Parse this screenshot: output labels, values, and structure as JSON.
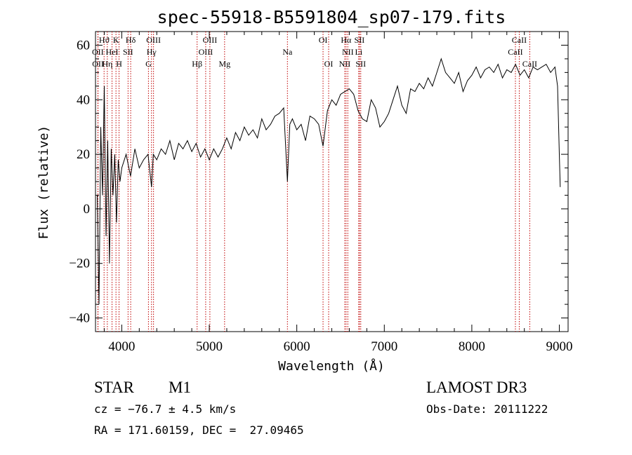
{
  "chart_data": {
    "type": "line",
    "title": "spec-55918-B5591804_sp07-179.fits",
    "xlabel": "Wavelength (Å)",
    "ylabel": "Flux (relative)",
    "xlim": [
      3700,
      9100
    ],
    "ylim": [
      -45,
      65
    ],
    "xticks": [
      4000,
      5000,
      6000,
      7000,
      8000,
      9000
    ],
    "xtick_labels": [
      "4000",
      "5000",
      "6000",
      "7000",
      "8000",
      "9000"
    ],
    "yticks": [
      -40,
      -20,
      0,
      20,
      40,
      60
    ],
    "ytick_labels": [
      "−40",
      "−20",
      "0",
      "20",
      "40",
      "60"
    ],
    "grid": false,
    "series": [
      {
        "name": "flux",
        "x": [
          3720,
          3740,
          3760,
          3780,
          3800,
          3820,
          3840,
          3860,
          3880,
          3900,
          3920,
          3940,
          3960,
          3980,
          4000,
          4050,
          4100,
          4150,
          4200,
          4250,
          4300,
          4340,
          4360,
          4400,
          4450,
          4500,
          4550,
          4600,
          4650,
          4700,
          4750,
          4800,
          4850,
          4900,
          4950,
          5000,
          5050,
          5100,
          5150,
          5200,
          5250,
          5300,
          5350,
          5400,
          5450,
          5500,
          5550,
          5600,
          5650,
          5700,
          5750,
          5800,
          5850,
          5893,
          5920,
          5950,
          6000,
          6050,
          6100,
          6150,
          6200,
          6250,
          6300,
          6350,
          6400,
          6450,
          6500,
          6550,
          6600,
          6650,
          6700,
          6750,
          6800,
          6850,
          6900,
          6950,
          7000,
          7050,
          7100,
          7150,
          7200,
          7250,
          7300,
          7350,
          7400,
          7450,
          7500,
          7550,
          7600,
          7650,
          7700,
          7750,
          7800,
          7850,
          7900,
          7950,
          8000,
          8050,
          8100,
          8150,
          8200,
          8250,
          8300,
          8350,
          8400,
          8450,
          8500,
          8550,
          8600,
          8650,
          8700,
          8750,
          8800,
          8850,
          8900,
          8950,
          8980,
          9000,
          9010
        ],
        "y": [
          5,
          -35,
          30,
          5,
          45,
          -10,
          25,
          -20,
          22,
          5,
          20,
          -5,
          18,
          10,
          15,
          20,
          12,
          22,
          15,
          18,
          20,
          8,
          20,
          18,
          22,
          20,
          25,
          18,
          24,
          22,
          25,
          21,
          24,
          19,
          22,
          18,
          22,
          19,
          22,
          26,
          22,
          28,
          25,
          30,
          27,
          29,
          26,
          33,
          29,
          31,
          34,
          35,
          37,
          10,
          31,
          33,
          29,
          31,
          25,
          34,
          33,
          31,
          23,
          36,
          40,
          38,
          42,
          43,
          44,
          42,
          36,
          33,
          32,
          40,
          37,
          30,
          32,
          35,
          40,
          45,
          38,
          35,
          44,
          43,
          46,
          44,
          48,
          45,
          50,
          55,
          50,
          48,
          46,
          50,
          43,
          47,
          49,
          52,
          48,
          51,
          52,
          50,
          53,
          48,
          51,
          50,
          53,
          49,
          51,
          48,
          52,
          51,
          52,
          53,
          50,
          52,
          45,
          20,
          8
        ]
      }
    ],
    "line_markers": [
      {
        "label": "Hϑ",
        "wavelength": 3798
      },
      {
        "label": "OII",
        "wavelength": 3727
      },
      {
        "label": "OII",
        "wavelength": 3729
      },
      {
        "label": "Hη",
        "wavelength": 3835
      },
      {
        "label": "HeI",
        "wavelength": 3889
      },
      {
        "label": "K",
        "wavelength": 3934
      },
      {
        "label": "H",
        "wavelength": 3969
      },
      {
        "label": "SII",
        "wavelength": 4072
      },
      {
        "label": "Hδ",
        "wavelength": 4102
      },
      {
        "label": "OIII",
        "wavelength": 4363
      },
      {
        "label": "Hγ",
        "wavelength": 4340
      },
      {
        "label": "G",
        "wavelength": 4305
      },
      {
        "label": "Hβ",
        "wavelength": 4861
      },
      {
        "label": "OIII",
        "wavelength": 4959
      },
      {
        "label": "OIII",
        "wavelength": 5007
      },
      {
        "label": "Mg",
        "wavelength": 5175
      },
      {
        "label": "Na",
        "wavelength": 5893
      },
      {
        "label": "OI",
        "wavelength": 6300
      },
      {
        "label": "OI",
        "wavelength": 6364
      },
      {
        "label": "NII",
        "wavelength": 6548
      },
      {
        "label": "Hα",
        "wavelength": 6563
      },
      {
        "label": "NII",
        "wavelength": 6583
      },
      {
        "label": "Li",
        "wavelength": 6708
      },
      {
        "label": "SII",
        "wavelength": 6716
      },
      {
        "label": "SII",
        "wavelength": 6731
      },
      {
        "label": "CaII",
        "wavelength": 8498
      },
      {
        "label": "CaII",
        "wavelength": 8542
      },
      {
        "label": "CaII",
        "wavelength": 8662
      }
    ],
    "line_label_text": {
      "row1": [
        "Hϑ",
        "K",
        "Hδ",
        "OIII",
        "OIII",
        "OI",
        "Hα",
        "SII",
        "CaII"
      ],
      "row2": [
        "OII",
        "HeI",
        "SII",
        "Hγ",
        "OIII",
        "Na",
        "NII",
        "Li",
        "CaII"
      ],
      "row3": [
        "OII",
        "Hη",
        "H",
        "G",
        "Hβ",
        "Mg",
        "OI",
        "NII",
        "SII",
        "CaII"
      ]
    }
  },
  "info": {
    "object_class": "STAR",
    "subclass": "M1",
    "survey": "LAMOST DR3",
    "redshift_line": "cz = −76.7 ± 4.5 km/s",
    "obs_date": "Obs-Date: 20111222",
    "coords": "RA = 171.60159, DEC =  27.09465"
  },
  "colors": {
    "line_marker": "#c00000",
    "spectrum": "#000000",
    "axes": "#000000"
  }
}
